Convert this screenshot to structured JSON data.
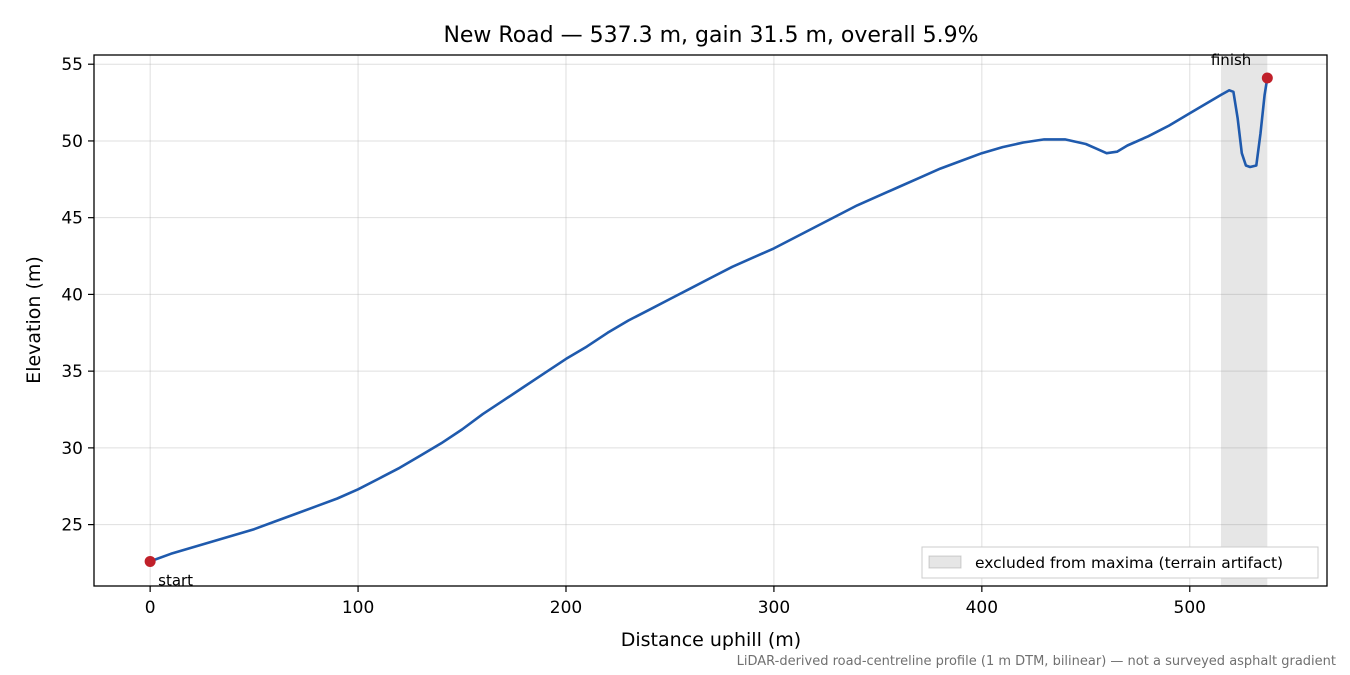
{
  "chart_data": {
    "type": "line",
    "title": "New Road — 537.3 m, gain 31.5 m, overall 5.9%",
    "xlabel": "Distance uphill (m)",
    "ylabel": "Elevation (m)",
    "xlim": [
      -27,
      566
    ],
    "ylim": [
      21.0,
      55.6
    ],
    "xticks": [
      0,
      100,
      200,
      300,
      400,
      500
    ],
    "yticks": [
      25,
      30,
      35,
      40,
      45,
      50,
      55
    ],
    "grid": true,
    "legend_position": "bottom-right",
    "footnote": "LiDAR-derived road-centreline profile (1 m DTM, bilinear) — not a surveyed asphalt gradient",
    "series": [
      {
        "color": "#1f5aad",
        "x": [
          0,
          10,
          20,
          30,
          40,
          50,
          60,
          70,
          80,
          90,
          100,
          110,
          120,
          130,
          140,
          150,
          160,
          170,
          180,
          190,
          200,
          210,
          220,
          230,
          240,
          250,
          260,
          270,
          280,
          290,
          300,
          310,
          320,
          330,
          340,
          350,
          360,
          370,
          380,
          390,
          400,
          410,
          420,
          430,
          440,
          450,
          455,
          460,
          465,
          470,
          480,
          490,
          500,
          510,
          515,
          519,
          521,
          523,
          525,
          527,
          529,
          532,
          534,
          536,
          537.3
        ],
        "y": [
          22.6,
          23.1,
          23.5,
          23.9,
          24.3,
          24.7,
          25.2,
          25.7,
          26.2,
          26.7,
          27.3,
          28.0,
          28.7,
          29.5,
          30.3,
          31.2,
          32.2,
          33.1,
          34.0,
          34.9,
          35.8,
          36.6,
          37.5,
          38.3,
          39.0,
          39.7,
          40.4,
          41.1,
          41.8,
          42.4,
          43.0,
          43.7,
          44.4,
          45.1,
          45.8,
          46.4,
          47.0,
          47.6,
          48.2,
          48.7,
          49.2,
          49.6,
          49.9,
          50.1,
          50.1,
          49.8,
          49.5,
          49.2,
          49.3,
          49.7,
          50.3,
          51.0,
          51.8,
          52.6,
          53.0,
          53.3,
          53.2,
          51.5,
          49.2,
          48.4,
          48.3,
          48.4,
          50.5,
          53.0,
          54.1
        ]
      }
    ],
    "markers": [
      {
        "x": 0,
        "y": 22.6,
        "label": "start",
        "color": "#c0202a"
      },
      {
        "x": 537.3,
        "y": 54.1,
        "label": "finish",
        "color": "#c0202a"
      }
    ],
    "shaded_region": {
      "x": [
        515,
        537.3
      ],
      "color": "#808080",
      "label": "excluded from maxima (terrain artifact)"
    }
  }
}
